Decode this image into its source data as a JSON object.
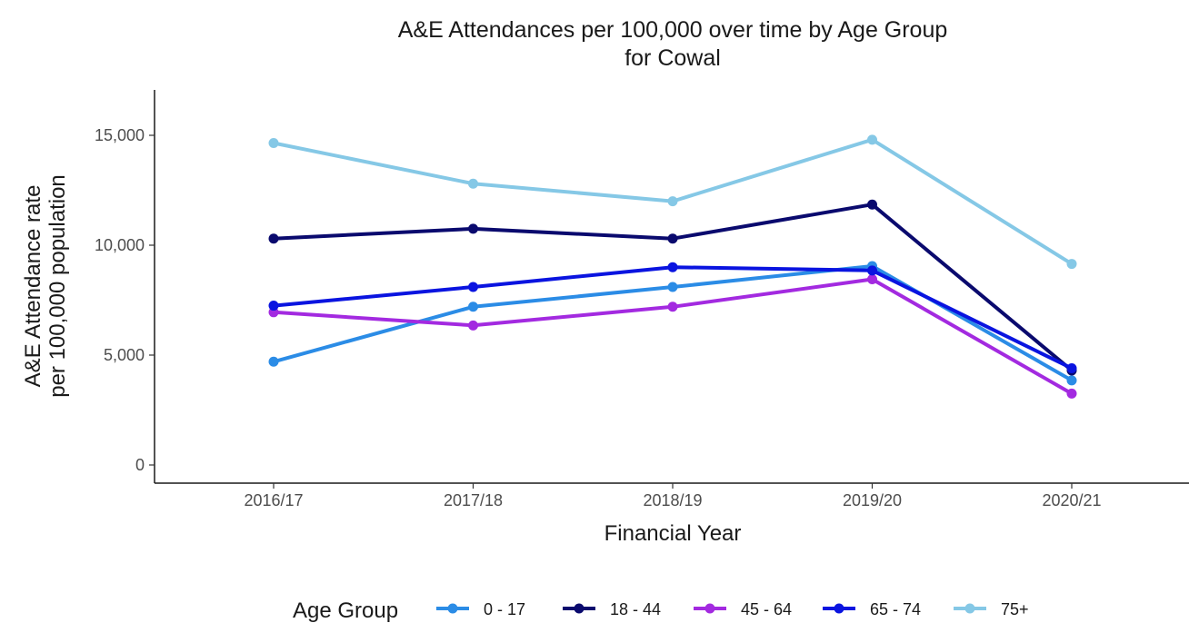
{
  "chart_data": {
    "type": "line",
    "title": "A&E Attendances per 100,000 over time by Age Group",
    "subtitle": "for Cowal",
    "xlabel": "Financial Year",
    "ylabel": "A&E Attendance rate",
    "ylabel_line2": "per 100,000 population",
    "categories": [
      "2016/17",
      "2017/18",
      "2018/19",
      "2019/20",
      "2020/21"
    ],
    "ylim": [
      -700,
      17000
    ],
    "yticks": [
      0,
      5000,
      10000,
      15000
    ],
    "ytick_labels": [
      "0",
      "5,000",
      "10,000",
      "15,000"
    ],
    "grid": false,
    "legend": {
      "title": "Age Group",
      "placement": "bottom"
    },
    "series": [
      {
        "name": "0 - 17",
        "color": "#2b8ce6",
        "values": [
          4700,
          7200,
          8100,
          9050,
          3850
        ]
      },
      {
        "name": "18 - 44",
        "color": "#0a0a6e",
        "values": [
          10300,
          10750,
          10300,
          11850,
          4300
        ]
      },
      {
        "name": "45 - 64",
        "color": "#a32ae0",
        "values": [
          6950,
          6350,
          7200,
          8450,
          3250
        ]
      },
      {
        "name": "65 - 74",
        "color": "#0a14e0",
        "values": [
          7250,
          8100,
          9000,
          8850,
          4400
        ]
      },
      {
        "name": "75+",
        "color": "#85c8e6",
        "values": [
          14650,
          12800,
          12000,
          14800,
          9150
        ]
      }
    ]
  }
}
